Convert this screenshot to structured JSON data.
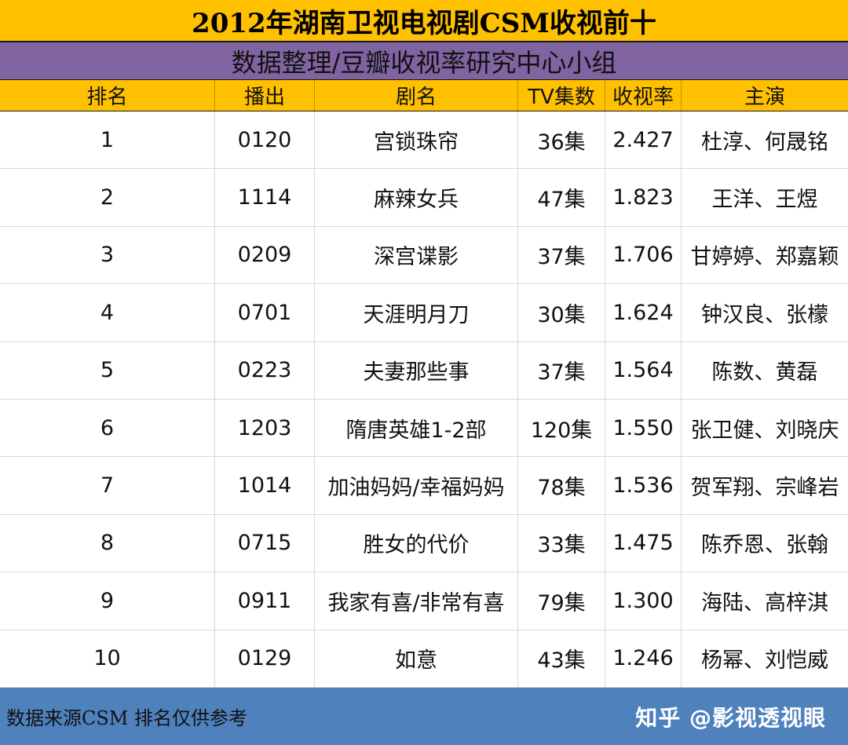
{
  "title": "2012年湖南卫视电视剧CSM收视前十",
  "subtitle": "数据整理/豆瓣收视率研究中心小组",
  "columns": [
    "排名",
    "播出",
    "剧名",
    "TV集数",
    "收视率",
    "主演"
  ],
  "rows": [
    [
      "1",
      "0120",
      "宫锁珠帘",
      "36集",
      "2.427",
      "杜淳、何晟铭"
    ],
    [
      "2",
      "1114",
      "麻辣女兵",
      "47集",
      "1.823",
      "王洋、王煜"
    ],
    [
      "3",
      "0209",
      "深宫谍影",
      "37集",
      "1.706",
      "甘婷婷、郑嘉颖"
    ],
    [
      "4",
      "0701",
      "天涯明月刀",
      "30集",
      "1.624",
      "钟汉良、张檬"
    ],
    [
      "5",
      "0223",
      "夫妻那些事",
      "37集",
      "1.564",
      "陈数、黄磊"
    ],
    [
      "6",
      "1203",
      "隋唐英雄1-2部",
      "120集",
      "1.550",
      "张卫健、刘晓庆"
    ],
    [
      "7",
      "1014",
      "加油妈妈/幸福妈妈",
      "78集",
      "1.536",
      "贺军翔、宗峰岩"
    ],
    [
      "8",
      "0715",
      "胜女的代价",
      "33集",
      "1.475",
      "陈乔恩、张翰"
    ],
    [
      "9",
      "0911",
      "我家有喜/非常有喜",
      "79集",
      "1.300",
      "海陆、高梓淇"
    ],
    [
      "10",
      "0129",
      "如意",
      "43集",
      "1.246",
      "杨幂、刘恺威"
    ]
  ],
  "footer": {
    "source": "数据来源CSM 排名仅供参考",
    "watermark": "知乎 @影视透视眼"
  },
  "colors": {
    "title_bg": "#FFC000",
    "subtitle_bg": "#8064A2",
    "header_bg": "#FFC000",
    "footer_bg": "#4F81BD"
  }
}
